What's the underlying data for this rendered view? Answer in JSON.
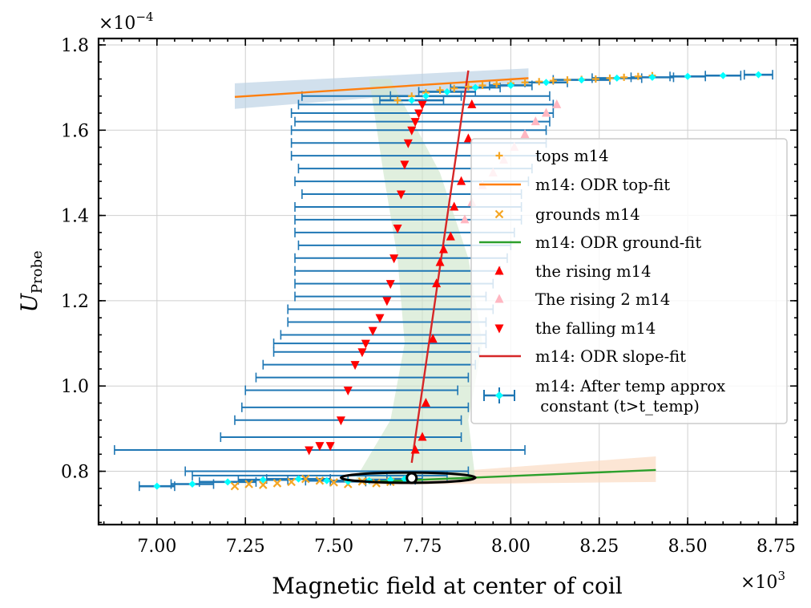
{
  "chart_data": {
    "type": "scatter",
    "xlabel": "Magnetic field at center of coil",
    "ylabel_main": "U",
    "ylabel_sub": "Probe",
    "x_multiplier": {
      "base": "×10",
      "exp": "3"
    },
    "y_multiplier": {
      "base": "×10",
      "exp": "−4"
    },
    "xlim": [
      6.835,
      8.81
    ],
    "ylim": [
      0.675,
      1.815
    ],
    "xticks": [
      7.0,
      7.25,
      7.5,
      7.75,
      8.0,
      8.25,
      8.5,
      8.75
    ],
    "xtick_labels": [
      "7.00",
      "7.25",
      "7.50",
      "7.75",
      "8.00",
      "8.25",
      "8.50",
      "8.75"
    ],
    "yticks": [
      0.8,
      1.0,
      1.2,
      1.4,
      1.6,
      1.8
    ],
    "ytick_labels": [
      "0.8",
      "1.0",
      "1.2",
      "1.4",
      "1.6",
      "1.8"
    ],
    "grid": true,
    "legend_position": "center-right",
    "legend": [
      {
        "label": "tops m14",
        "marker": "plus",
        "color": "#f5a623"
      },
      {
        "label": "m14: ODR top-fit",
        "marker": "line",
        "color": "#ff7f0e"
      },
      {
        "label": "grounds m14",
        "marker": "x",
        "color": "#f5a623"
      },
      {
        "label": "m14: ODR ground-fit",
        "marker": "line",
        "color": "#2ca02c"
      },
      {
        "label": "the rising m14",
        "marker": "triangle-up",
        "color": "#ff0000"
      },
      {
        "label": "The rising 2 m14",
        "marker": "triangle-up",
        "color": "#ffb6c1"
      },
      {
        "label": "the falling m14",
        "marker": "triangle-down",
        "color": "#ff0000"
      },
      {
        "label": "m14: ODR slope-fit",
        "marker": "line",
        "color": "#d62728"
      },
      {
        "label": "m14: After temp approx\n constant (t>t_temp)",
        "marker": "errorbar",
        "color": "#1f77b4",
        "point_color": "#00ffff"
      }
    ],
    "top_fit": {
      "x": [
        7.22,
        8.05
      ],
      "y": [
        1.678,
        1.722
      ]
    },
    "ground_fit": {
      "x": [
        7.6,
        8.41
      ],
      "y": [
        0.775,
        0.803
      ]
    },
    "slope_fit": {
      "x": [
        7.72,
        7.88
      ],
      "y": [
        0.82,
        1.74
      ]
    },
    "top_points": {
      "x": [
        7.68,
        7.72,
        7.76,
        7.8,
        7.84,
        7.88,
        7.92,
        7.96,
        8.0,
        8.04,
        8.08,
        8.12,
        8.16,
        8.2,
        8.24,
        8.28,
        8.32,
        8.36,
        8.4
      ],
      "y": [
        1.67,
        1.68,
        1.688,
        1.694,
        1.698,
        1.702,
        1.705,
        1.708,
        1.71,
        1.712,
        1.714,
        1.716,
        1.718,
        1.719,
        1.72,
        1.722,
        1.724,
        1.726,
        1.728
      ]
    },
    "ground_points": {
      "x": [
        7.22,
        7.26,
        7.3,
        7.34,
        7.38,
        7.42,
        7.46,
        7.5,
        7.54,
        7.58,
        7.62,
        7.66
      ],
      "y": [
        0.765,
        0.77,
        0.768,
        0.772,
        0.775,
        0.782,
        0.778,
        0.774,
        0.77,
        0.776,
        0.772,
        0.775
      ]
    },
    "rising_points": {
      "x": [
        7.73,
        7.75,
        7.76,
        7.78,
        7.79,
        7.8,
        7.81,
        7.83,
        7.84,
        7.86,
        7.88,
        7.89
      ],
      "y": [
        0.85,
        0.88,
        0.96,
        1.11,
        1.24,
        1.29,
        1.32,
        1.35,
        1.42,
        1.48,
        1.58,
        1.66
      ]
    },
    "rising2_points": {
      "x": [
        7.87,
        7.89,
        7.92,
        7.95,
        7.98,
        8.01,
        8.04,
        8.07,
        8.1,
        8.13
      ],
      "y": [
        1.39,
        1.43,
        1.47,
        1.5,
        1.53,
        1.56,
        1.59,
        1.62,
        1.64,
        1.66
      ]
    },
    "falling_points": {
      "x": [
        7.43,
        7.46,
        7.49,
        7.52,
        7.54,
        7.56,
        7.58,
        7.59,
        7.61,
        7.63,
        7.65,
        7.66,
        7.67,
        7.68,
        7.69,
        7.7,
        7.71,
        7.72,
        7.73,
        7.74,
        7.75
      ],
      "y": [
        0.85,
        0.86,
        0.86,
        0.92,
        0.99,
        1.05,
        1.08,
        1.1,
        1.13,
        1.16,
        1.2,
        1.24,
        1.3,
        1.37,
        1.45,
        1.52,
        1.57,
        1.6,
        1.62,
        1.64,
        1.66
      ]
    },
    "aftertemp_points": {
      "x": [
        7.0,
        7.1,
        7.2,
        7.3,
        7.4,
        7.48,
        7.54,
        7.6,
        7.66,
        7.7,
        7.72,
        7.76,
        7.82,
        7.9,
        8.0,
        8.1,
        8.2,
        8.3,
        8.4,
        8.5,
        8.6,
        8.7
      ],
      "y": [
        0.765,
        0.77,
        0.775,
        0.78,
        0.782,
        0.778,
        0.776,
        0.778,
        0.78,
        0.782,
        1.67,
        1.68,
        1.69,
        1.7,
        1.705,
        1.712,
        1.718,
        1.722,
        1.724,
        1.726,
        1.728,
        1.73
      ],
      "xerr": [
        0.05,
        0.06,
        0.08,
        0.07,
        0.09,
        0.06,
        0.05,
        0.06,
        0.07,
        0.05,
        0.09,
        0.1,
        0.08,
        0.07,
        0.06,
        0.06,
        0.08,
        0.07,
        0.06,
        0.05,
        0.05,
        0.04
      ]
    },
    "transition_errorbars": {
      "y": [
        0.79,
        0.8,
        0.85,
        0.88,
        0.92,
        0.95,
        0.99,
        1.02,
        1.05,
        1.08,
        1.1,
        1.12,
        1.15,
        1.18,
        1.21,
        1.24,
        1.27,
        1.3,
        1.33,
        1.36,
        1.39,
        1.42,
        1.45,
        1.48,
        1.51,
        1.54,
        1.57,
        1.6,
        1.62,
        1.64,
        1.66,
        1.68
      ],
      "xcenter": [
        7.46,
        7.48,
        7.46,
        7.52,
        7.54,
        7.56,
        7.55,
        7.58,
        7.6,
        7.62,
        7.63,
        7.64,
        7.65,
        7.66,
        7.66,
        7.67,
        7.68,
        7.69,
        7.7,
        7.7,
        7.71,
        7.71,
        7.72,
        7.72,
        7.73,
        7.73,
        7.74,
        7.74,
        7.75,
        7.75,
        7.76,
        7.76
      ],
      "halfwidth": [
        0.36,
        0.4,
        0.58,
        0.34,
        0.32,
        0.32,
        0.3,
        0.3,
        0.3,
        0.29,
        0.3,
        0.29,
        0.28,
        0.29,
        0.27,
        0.28,
        0.29,
        0.3,
        0.3,
        0.31,
        0.32,
        0.32,
        0.31,
        0.33,
        0.33,
        0.35,
        0.36,
        0.36,
        0.36,
        0.37,
        0.36,
        0.35
      ]
    },
    "confidence_bands": [
      {
        "name": "top-fit band",
        "color": "#b8cfe4",
        "x": [
          7.22,
          8.05
        ],
        "upper": [
          1.71,
          1.745
        ],
        "lower": [
          1.65,
          1.705
        ]
      },
      {
        "name": "ground-fit band",
        "color": "#fbd9be",
        "x": [
          7.6,
          8.41
        ],
        "upper": [
          0.785,
          0.835
        ],
        "lower": [
          0.768,
          0.775
        ]
      },
      {
        "name": "slope-fit band",
        "color": "#cfe6cc",
        "x_left": [
          7.6,
          7.64,
          7.68,
          7.7,
          7.66,
          7.56
        ],
        "x_right": [
          7.66,
          7.8,
          7.88,
          7.92,
          7.88,
          7.9
        ],
        "y": [
          1.72,
          1.5,
          1.3,
          1.1,
          0.92,
          0.78
        ]
      }
    ],
    "ellipse": {
      "cx": 7.71,
      "cy": 0.785,
      "rx": 0.19,
      "ry": 0.012
    },
    "ellipse_center": {
      "x": 7.72,
      "y": 0.784
    }
  }
}
